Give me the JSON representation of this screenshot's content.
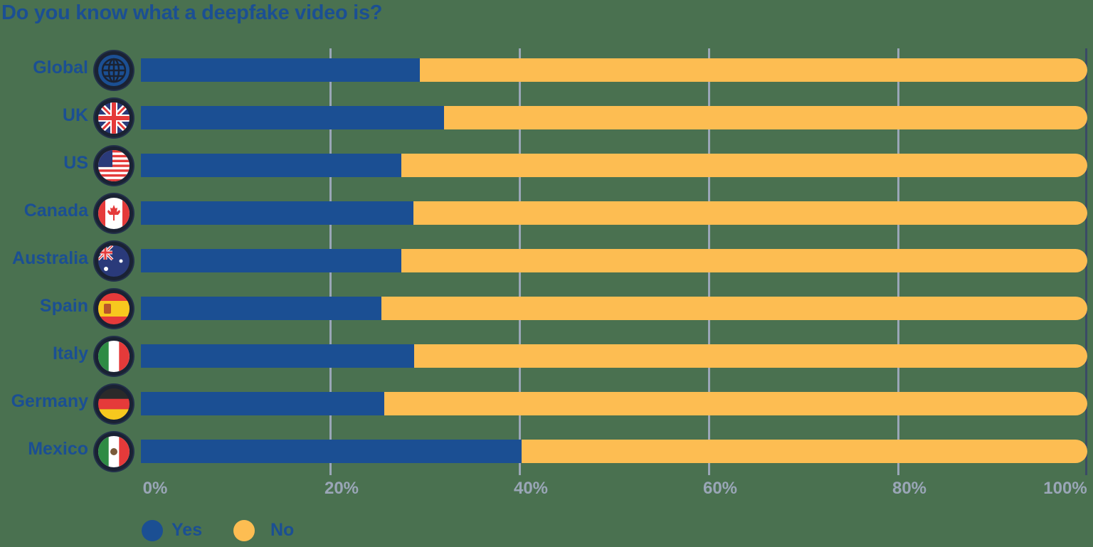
{
  "chart_data": {
    "type": "bar",
    "stacked": true,
    "orientation": "horizontal",
    "title": "Do you know what a deepfake video is?",
    "categories": [
      "Global",
      "UK",
      "US",
      "Canada",
      "Australia",
      "Spain",
      "Italy",
      "Germany",
      "Mexico"
    ],
    "series": [
      {
        "name": "Yes",
        "color": "#1b4f93",
        "values": [
          29.5,
          32,
          27.5,
          28.8,
          27.5,
          25.4,
          28.9,
          25.7,
          40.2
        ]
      },
      {
        "name": "No",
        "color": "#fdbd52",
        "values": [
          70.5,
          68,
          72.5,
          71.2,
          72.5,
          74.6,
          71.1,
          74.3,
          59.8
        ]
      }
    ],
    "xlabel": "",
    "ylabel": "",
    "xlim": [
      0,
      100
    ],
    "x_ticks": [
      "0%",
      "20%",
      "40%",
      "60%",
      "80%",
      "100%"
    ],
    "grid": true,
    "legend_position": "bottom-left"
  },
  "title": "Do you know what a deepfake video is?",
  "rows": [
    {
      "label": "Global",
      "icon": "globe-icon",
      "yes": 29.5
    },
    {
      "label": "UK",
      "icon": "uk-flag-icon",
      "yes": 32
    },
    {
      "label": "US",
      "icon": "us-flag-icon",
      "yes": 27.5
    },
    {
      "label": "Canada",
      "icon": "canada-flag-icon",
      "yes": 28.8
    },
    {
      "label": "Australia",
      "icon": "australia-flag-icon",
      "yes": 27.5
    },
    {
      "label": "Spain",
      "icon": "spain-flag-icon",
      "yes": 25.4
    },
    {
      "label": "Italy",
      "icon": "italy-flag-icon",
      "yes": 28.9
    },
    {
      "label": "Germany",
      "icon": "germany-flag-icon",
      "yes": 25.7
    },
    {
      "label": "Mexico",
      "icon": "mexico-flag-icon",
      "yes": 40.2
    }
  ],
  "axis": {
    "ticks": [
      "0%",
      "20%",
      "40%",
      "60%",
      "80%",
      "100%"
    ]
  },
  "legend": {
    "yes": "Yes",
    "no": "No"
  },
  "colors": {
    "yes": "#1b4f93",
    "no": "#fdbd52",
    "background": "#4a7150",
    "grid": "#9aa6b7"
  }
}
